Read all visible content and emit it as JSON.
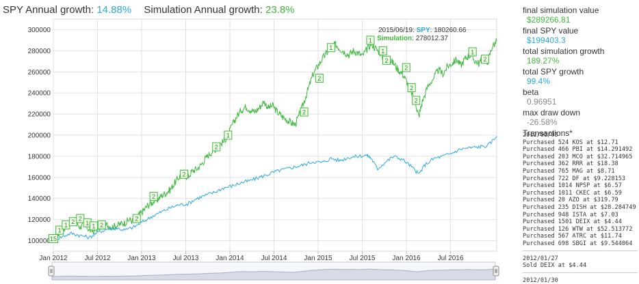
{
  "header": {
    "spy_label": "SPY Annual growth:",
    "spy_value": "14.88%",
    "sim_label": "Simulation Annual growth:",
    "sim_value": "23.8%"
  },
  "tooltip": {
    "date": "2015/06/19",
    "spy_label": "SPY",
    "spy_value": "180260.66",
    "sim_label": "Simulation",
    "sim_value": "278012.37"
  },
  "colors": {
    "simulation": "#3db83d",
    "spy": "#29a9e0",
    "marker_fill": "#f2fbe8"
  },
  "stats": [
    {
      "label": "final simulation value",
      "value": "$289266.81",
      "color": "green"
    },
    {
      "label": "final SPY value",
      "value": "$199403.3",
      "color": "blue"
    },
    {
      "label": "total simulation growth",
      "value": "189.27%",
      "color": "green"
    },
    {
      "label": "total SPY growth",
      "value": "99.4%",
      "color": "blue"
    },
    {
      "label": "beta",
      "value": "0.96951",
      "color": "gray"
    },
    {
      "label": "max draw down",
      "value": "-26.58%",
      "color": "gray"
    }
  ],
  "transactions_label": "Transactions*",
  "transactions": [
    {
      "date": "2012/01/03",
      "lines": [
        "Purchased 524 KOS at $12.71",
        "Purchased 466 PBI at $14.291492",
        "Purchased 203 MCO at $32.714965",
        "Purchased 362 RRR at $18.38",
        "Purchased 765 MAG at $8.71",
        "Purchased 722 DF at $9.228153",
        "Purchased 1014 NPSP at $6.57",
        "Purchased 1011 CKEC at $6.59",
        "Purchased 20 AZO at $319.79",
        "Purchased 235 DISH at $28.284749",
        "Purchased 948 ISTA at $7.03",
        "Purchased 1501 DEIX at $4.44",
        "Purchased 126 WTW at $52.513772",
        "Purchased 567 ATRC at $11.74",
        "Purchased 698 SBGI at $9.544064"
      ]
    },
    {
      "date": "2012/01/27",
      "lines": [
        "Sold DEIX at $4.44"
      ]
    },
    {
      "date": "2012/01/30",
      "lines": []
    }
  ],
  "chart_data": {
    "type": "line",
    "x_ticks": [
      "Jan 2012",
      "Jul 2012",
      "Jan 2013",
      "Jul 2013",
      "Jan 2014",
      "Jul 2014",
      "Jan 2015",
      "Jul 2015",
      "Jan 2016",
      "Jul 2016"
    ],
    "y_ticks": [
      "100000",
      "120000",
      "140000",
      "160000",
      "180000",
      "200000",
      "220000",
      "240000",
      "260000",
      "280000",
      "300000"
    ],
    "ylim": [
      90000,
      310000
    ],
    "xlim": [
      2012.0,
      2016.95
    ],
    "grid": true,
    "legend": "none",
    "series": [
      {
        "name": "Simulation",
        "color": "green",
        "points": [
          [
            2012.0,
            100000
          ],
          [
            2012.05,
            106000
          ],
          [
            2012.1,
            110000
          ],
          [
            2012.15,
            114000
          ],
          [
            2012.2,
            118000
          ],
          [
            2012.25,
            117000
          ],
          [
            2012.3,
            113000
          ],
          [
            2012.35,
            116000
          ],
          [
            2012.4,
            110000
          ],
          [
            2012.45,
            109000
          ],
          [
            2012.5,
            112000
          ],
          [
            2012.55,
            113000
          ],
          [
            2012.6,
            115000
          ],
          [
            2012.65,
            113000
          ],
          [
            2012.7,
            114000
          ],
          [
            2012.75,
            116000
          ],
          [
            2012.8,
            117000
          ],
          [
            2012.85,
            120000
          ],
          [
            2012.9,
            118000
          ],
          [
            2012.95,
            124000
          ],
          [
            2013.0,
            128000
          ],
          [
            2013.05,
            133000
          ],
          [
            2013.1,
            136000
          ],
          [
            2013.15,
            138000
          ],
          [
            2013.2,
            142000
          ],
          [
            2013.25,
            145000
          ],
          [
            2013.3,
            148000
          ],
          [
            2013.35,
            154000
          ],
          [
            2013.4,
            160000
          ],
          [
            2013.45,
            164000
          ],
          [
            2013.5,
            160000
          ],
          [
            2013.55,
            166000
          ],
          [
            2013.6,
            168000
          ],
          [
            2013.65,
            172000
          ],
          [
            2013.7,
            178000
          ],
          [
            2013.75,
            183000
          ],
          [
            2013.8,
            186000
          ],
          [
            2013.85,
            190000
          ],
          [
            2013.9,
            194000
          ],
          [
            2013.95,
            200000
          ],
          [
            2014.0,
            210000
          ],
          [
            2014.05,
            218000
          ],
          [
            2014.1,
            224000
          ],
          [
            2014.15,
            227000
          ],
          [
            2014.2,
            224000
          ],
          [
            2014.25,
            222000
          ],
          [
            2014.3,
            226000
          ],
          [
            2014.35,
            232000
          ],
          [
            2014.4,
            226000
          ],
          [
            2014.45,
            228000
          ],
          [
            2014.5,
            222000
          ],
          [
            2014.55,
            218000
          ],
          [
            2014.6,
            215000
          ],
          [
            2014.65,
            212000
          ],
          [
            2014.7,
            210000
          ],
          [
            2014.75,
            220000
          ],
          [
            2014.8,
            232000
          ],
          [
            2014.85,
            245000
          ],
          [
            2014.9,
            258000
          ],
          [
            2014.95,
            265000
          ],
          [
            2015.0,
            272000
          ],
          [
            2015.05,
            278000
          ],
          [
            2015.1,
            282000
          ],
          [
            2015.15,
            286000
          ],
          [
            2015.2,
            282000
          ],
          [
            2015.25,
            279000
          ],
          [
            2015.3,
            276000
          ],
          [
            2015.35,
            280000
          ],
          [
            2015.4,
            278000
          ],
          [
            2015.45,
            275000
          ],
          [
            2015.5,
            281000
          ],
          [
            2015.55,
            287000
          ],
          [
            2015.6,
            282000
          ],
          [
            2015.65,
            278000
          ],
          [
            2015.7,
            270000
          ],
          [
            2015.75,
            272000
          ],
          [
            2015.8,
            268000
          ],
          [
            2015.85,
            262000
          ],
          [
            2015.9,
            258000
          ],
          [
            2015.95,
            250000
          ],
          [
            2016.0,
            240000
          ],
          [
            2016.05,
            228000
          ],
          [
            2016.08,
            218000
          ],
          [
            2016.12,
            232000
          ],
          [
            2016.18,
            246000
          ],
          [
            2016.25,
            255000
          ],
          [
            2016.3,
            262000
          ],
          [
            2016.35,
            258000
          ],
          [
            2016.4,
            265000
          ],
          [
            2016.45,
            268000
          ],
          [
            2016.5,
            272000
          ],
          [
            2016.55,
            266000
          ],
          [
            2016.6,
            273000
          ],
          [
            2016.65,
            276000
          ],
          [
            2016.7,
            271000
          ],
          [
            2016.75,
            268000
          ],
          [
            2016.8,
            273000
          ],
          [
            2016.85,
            270000
          ],
          [
            2016.9,
            284000
          ],
          [
            2016.95,
            289000
          ]
        ]
      },
      {
        "name": "SPY",
        "color": "blue",
        "points": [
          [
            2012.0,
            100000
          ],
          [
            2012.1,
            104000
          ],
          [
            2012.2,
            107000
          ],
          [
            2012.3,
            105000
          ],
          [
            2012.4,
            103000
          ],
          [
            2012.5,
            108000
          ],
          [
            2012.6,
            111000
          ],
          [
            2012.7,
            112000
          ],
          [
            2012.8,
            110000
          ],
          [
            2012.9,
            113000
          ],
          [
            2013.0,
            118000
          ],
          [
            2013.1,
            123000
          ],
          [
            2013.2,
            127000
          ],
          [
            2013.3,
            131000
          ],
          [
            2013.4,
            134000
          ],
          [
            2013.5,
            135000
          ],
          [
            2013.6,
            140000
          ],
          [
            2013.7,
            143000
          ],
          [
            2013.8,
            146000
          ],
          [
            2013.9,
            150000
          ],
          [
            2014.0,
            152000
          ],
          [
            2014.1,
            155000
          ],
          [
            2014.2,
            157000
          ],
          [
            2014.3,
            160000
          ],
          [
            2014.4,
            163000
          ],
          [
            2014.5,
            166000
          ],
          [
            2014.6,
            168000
          ],
          [
            2014.7,
            170000
          ],
          [
            2014.8,
            172000
          ],
          [
            2014.9,
            175000
          ],
          [
            2015.0,
            174000
          ],
          [
            2015.1,
            178000
          ],
          [
            2015.2,
            176000
          ],
          [
            2015.3,
            179000
          ],
          [
            2015.4,
            180000
          ],
          [
            2015.5,
            181000
          ],
          [
            2015.55,
            178000
          ],
          [
            2015.62,
            168000
          ],
          [
            2015.7,
            174000
          ],
          [
            2015.8,
            180000
          ],
          [
            2015.9,
            177000
          ],
          [
            2016.0,
            170000
          ],
          [
            2016.08,
            163000
          ],
          [
            2016.15,
            172000
          ],
          [
            2016.25,
            178000
          ],
          [
            2016.35,
            180000
          ],
          [
            2016.45,
            183000
          ],
          [
            2016.55,
            187000
          ],
          [
            2016.65,
            188000
          ],
          [
            2016.75,
            189000
          ],
          [
            2016.85,
            190000
          ],
          [
            2016.95,
            199000
          ]
        ]
      }
    ],
    "markers": [
      {
        "x": 2012.0,
        "y": 102000,
        "label": "15"
      },
      {
        "x": 2012.07,
        "y": 110000,
        "label": "1"
      },
      {
        "x": 2012.14,
        "y": 115000,
        "label": "1"
      },
      {
        "x": 2012.22,
        "y": 118000,
        "label": "2"
      },
      {
        "x": 2012.3,
        "y": 121000,
        "label": "2"
      },
      {
        "x": 2012.38,
        "y": 117000,
        "label": "1"
      },
      {
        "x": 2012.45,
        "y": 114000,
        "label": "1"
      },
      {
        "x": 2012.54,
        "y": 115000,
        "label": "2"
      },
      {
        "x": 2012.93,
        "y": 121000,
        "label": "2"
      },
      {
        "x": 2013.12,
        "y": 142000,
        "label": "2"
      },
      {
        "x": 2013.46,
        "y": 163000,
        "label": "2"
      },
      {
        "x": 2013.82,
        "y": 189000,
        "label": "2"
      },
      {
        "x": 2013.95,
        "y": 200000,
        "label": "1"
      },
      {
        "x": 2014.8,
        "y": 222000,
        "label": "2"
      },
      {
        "x": 2014.97,
        "y": 254000,
        "label": "2"
      },
      {
        "x": 2015.1,
        "y": 283000,
        "label": "1"
      },
      {
        "x": 2015.54,
        "y": 290000,
        "label": "1"
      },
      {
        "x": 2015.68,
        "y": 280000,
        "label": "1"
      },
      {
        "x": 2015.72,
        "y": 271000,
        "label": "2"
      },
      {
        "x": 2015.94,
        "y": 264000,
        "label": "2"
      },
      {
        "x": 2016.0,
        "y": 245000,
        "label": "2"
      },
      {
        "x": 2016.05,
        "y": 233000,
        "label": "2"
      },
      {
        "x": 2016.68,
        "y": 279000,
        "label": "1"
      },
      {
        "x": 2016.82,
        "y": 272000,
        "label": "2"
      }
    ]
  }
}
